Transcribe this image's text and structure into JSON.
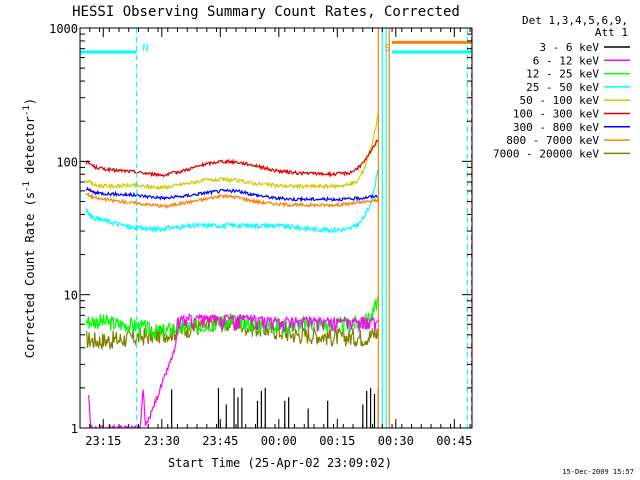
{
  "chart_data": {
    "type": "line",
    "title": "HESSI Observing Summary Count Rates, Corrected",
    "xlabel": "Start Time (25-Apr-02 23:09:02)",
    "ylabel": "Corrected Count Rate (s⁻¹ detector⁻¹)",
    "ylabel_parts": {
      "main": "Corrected Count Rate (s",
      "sup1": "-1",
      "mid": " detector",
      "sup2": "-1",
      "end": ")"
    },
    "yscale": "log",
    "ylim": [
      1,
      1000
    ],
    "xlim": [
      0,
      100.5
    ],
    "x_unit": "minutes after 23:09:02",
    "x_ticks": [
      {
        "x": 5.97,
        "label": "23:15"
      },
      {
        "x": 20.97,
        "label": "23:30"
      },
      {
        "x": 35.97,
        "label": "23:45"
      },
      {
        "x": 50.97,
        "label": "00:00"
      },
      {
        "x": 65.97,
        "label": "00:15"
      },
      {
        "x": 80.97,
        "label": "00:30"
      },
      {
        "x": 95.97,
        "label": "00:45"
      }
    ],
    "y_ticks": [
      {
        "y": 1,
        "label": "1"
      },
      {
        "y": 10,
        "label": "10"
      },
      {
        "y": 100,
        "label": "100"
      },
      {
        "y": 1000,
        "label": "1000"
      }
    ],
    "legend_header": [
      "Det 1,3,4,5,6,9,",
      "Att 1"
    ],
    "legend_placement": "right",
    "series": [
      {
        "name": "3 - 6 keV",
        "color": "#000000"
      },
      {
        "name": "6 - 12 keV",
        "color": "#ff00ff"
      },
      {
        "name": "12 - 25 keV",
        "color": "#00ff00"
      },
      {
        "name": "25 - 50 keV",
        "color": "#00ffff"
      },
      {
        "name": "50 - 100 keV",
        "color": "#cccc00"
      },
      {
        "name": "100 - 300 keV",
        "color": "#dd0000"
      },
      {
        "name": "300 - 800 keV",
        "color": "#0000ff"
      },
      {
        "name": "800 - 7000 keV",
        "color": "#ff8000"
      },
      {
        "name": "7000 - 20000 keV",
        "color": "#808000"
      }
    ],
    "curves": {
      "3 - 6 keV": {
        "spikes": [
          [
            23.5,
            1.95
          ],
          [
            35.5,
            2.0
          ],
          [
            37.5,
            1.5
          ],
          [
            39.5,
            2.0
          ],
          [
            40.5,
            1.7
          ],
          [
            41.5,
            2.0
          ],
          [
            45.5,
            1.6
          ],
          [
            46.5,
            1.9
          ],
          [
            47.5,
            2.0
          ],
          [
            52.5,
            1.6
          ],
          [
            53.5,
            1.7
          ],
          [
            58.5,
            1.4
          ],
          [
            63.5,
            1.6
          ],
          [
            72.5,
            1.5
          ],
          [
            73.5,
            1.9
          ],
          [
            74.5,
            2.0
          ],
          [
            75.5,
            1.8
          ],
          [
            76.5,
            2.0
          ]
        ]
      },
      "6 - 12 keV": {
        "points": [
          [
            2.2,
            1.85
          ],
          [
            2.7,
            1.0
          ],
          [
            15.5,
            1.0
          ],
          [
            16.2,
            2.0
          ],
          [
            16.8,
            1.0
          ],
          [
            24.5,
            4.0
          ],
          [
            25,
            6.5
          ],
          [
            27.5,
            6.8
          ],
          [
            40,
            6.8
          ],
          [
            50,
            6.5
          ],
          [
            60,
            6.5
          ],
          [
            70,
            6.5
          ],
          [
            76.5,
            6.4
          ]
        ]
      },
      "12 - 25 keV": {
        "points": [
          [
            1.5,
            6.3
          ],
          [
            5,
            6.3
          ],
          [
            10,
            6.0
          ],
          [
            15,
            5.8
          ],
          [
            20,
            5.2
          ],
          [
            25,
            5.6
          ],
          [
            30,
            5.8
          ],
          [
            35,
            6.2
          ],
          [
            40,
            6.3
          ],
          [
            45,
            6.0
          ],
          [
            50,
            5.8
          ],
          [
            55,
            5.9
          ],
          [
            60,
            6.1
          ],
          [
            65,
            5.8
          ],
          [
            70,
            6.0
          ],
          [
            73,
            6.2
          ],
          [
            75,
            7.0
          ],
          [
            76.5,
            9.5
          ]
        ]
      },
      "25 - 50 keV": {
        "points": [
          [
            1.5,
            43
          ],
          [
            3,
            38
          ],
          [
            8,
            35
          ],
          [
            13,
            32
          ],
          [
            19,
            31
          ],
          [
            25,
            32
          ],
          [
            30,
            33
          ],
          [
            35,
            33
          ],
          [
            40,
            33
          ],
          [
            45,
            33
          ],
          [
            50,
            33
          ],
          [
            55,
            32
          ],
          [
            60,
            31
          ],
          [
            65,
            30.5
          ],
          [
            69,
            31
          ],
          [
            72,
            35
          ],
          [
            74,
            44
          ],
          [
            75.5,
            62
          ],
          [
            76.5,
            95
          ]
        ]
      },
      "50 - 100 keV": {
        "points": [
          [
            1.5,
            72
          ],
          [
            4,
            66
          ],
          [
            8,
            65
          ],
          [
            13,
            66
          ],
          [
            19,
            64
          ],
          [
            22,
            64
          ],
          [
            27,
            68
          ],
          [
            32,
            72
          ],
          [
            36,
            73
          ],
          [
            40,
            72
          ],
          [
            45,
            68
          ],
          [
            50,
            66
          ],
          [
            55,
            65
          ],
          [
            60,
            65
          ],
          [
            65,
            65
          ],
          [
            69,
            67
          ],
          [
            71,
            70
          ],
          [
            73,
            90
          ],
          [
            75,
            140
          ],
          [
            76.5,
            230
          ]
        ]
      },
      "100 - 300 keV": {
        "points": [
          [
            1.5,
            100
          ],
          [
            4,
            90
          ],
          [
            8,
            86
          ],
          [
            13,
            84
          ],
          [
            19,
            80
          ],
          [
            22,
            79
          ],
          [
            27,
            86
          ],
          [
            32,
            95
          ],
          [
            36,
            100
          ],
          [
            40,
            99
          ],
          [
            45,
            93
          ],
          [
            50,
            85
          ],
          [
            55,
            82
          ],
          [
            60,
            81
          ],
          [
            65,
            80
          ],
          [
            69,
            82
          ],
          [
            71,
            88
          ],
          [
            73,
            100
          ],
          [
            75,
            125
          ],
          [
            76.5,
            150
          ]
        ]
      },
      "300 - 800 keV": {
        "points": [
          [
            1.5,
            62
          ],
          [
            4,
            58
          ],
          [
            8,
            57
          ],
          [
            13,
            56
          ],
          [
            19,
            54
          ],
          [
            22,
            53
          ],
          [
            27,
            55
          ],
          [
            32,
            58
          ],
          [
            36,
            60
          ],
          [
            40,
            60
          ],
          [
            45,
            56
          ],
          [
            50,
            53
          ],
          [
            55,
            52
          ],
          [
            60,
            52
          ],
          [
            65,
            52
          ],
          [
            69,
            52
          ],
          [
            72,
            53
          ],
          [
            74,
            54
          ],
          [
            76.5,
            55
          ]
        ]
      },
      "800 - 7000 keV": {
        "points": [
          [
            1.5,
            57
          ],
          [
            4,
            53
          ],
          [
            8,
            51
          ],
          [
            13,
            49
          ],
          [
            19,
            47
          ],
          [
            22,
            46
          ],
          [
            27,
            49
          ],
          [
            32,
            52
          ],
          [
            36,
            55
          ],
          [
            40,
            54
          ],
          [
            45,
            50
          ],
          [
            50,
            48
          ],
          [
            55,
            47
          ],
          [
            60,
            47
          ],
          [
            65,
            47
          ],
          [
            69,
            48
          ],
          [
            72,
            49
          ],
          [
            74,
            50
          ],
          [
            76.5,
            51
          ]
        ]
      },
      "7000 - 20000 keV": {
        "points": [
          [
            1.5,
            4.6
          ],
          [
            5,
            4.5
          ],
          [
            10,
            4.6
          ],
          [
            15,
            4.8
          ],
          [
            20,
            5.0
          ],
          [
            25,
            5.3
          ],
          [
            28,
            5.6
          ],
          [
            30,
            5.7
          ],
          [
            35,
            6.2
          ],
          [
            40,
            6.0
          ],
          [
            45,
            5.6
          ],
          [
            50,
            5.4
          ],
          [
            55,
            5.0
          ],
          [
            60,
            5.0
          ],
          [
            65,
            4.8
          ],
          [
            70,
            4.8
          ],
          [
            73,
            4.8
          ],
          [
            75,
            5.0
          ],
          [
            76.5,
            5.2
          ]
        ]
      }
    },
    "attenuator_flat": [
      {
        "color": "#00ffff",
        "x": [
          0,
          14.5
        ],
        "y": 660
      },
      {
        "color": "#00ffff",
        "x": [
          80,
          100.5
        ],
        "y": 660
      },
      {
        "color": "#ff8000",
        "x": [
          80,
          100.5
        ],
        "y": 780
      }
    ],
    "annotations": [
      {
        "label": "N",
        "x": 14.5,
        "color": "#00ffff",
        "style": "dashed"
      },
      {
        "label": "S",
        "x": 76.5,
        "color": "#ff8000",
        "style": "solid"
      }
    ],
    "vertical_markers": [
      {
        "x": 0,
        "color": "#00ffff",
        "style": "solid"
      },
      {
        "x": 77.5,
        "color": "#00ffff",
        "style": "solid"
      },
      {
        "x": 78.5,
        "color": "#00ffff",
        "style": "solid"
      },
      {
        "x": 79.3,
        "color": "#ff8000",
        "style": "solid"
      },
      {
        "x": 99.3,
        "color": "#00ffff",
        "style": "dashed"
      },
      {
        "x": 100.4,
        "color": "#ff8000",
        "style": "dashed"
      }
    ],
    "timestamp": "15-Dec-2009 15:57"
  }
}
